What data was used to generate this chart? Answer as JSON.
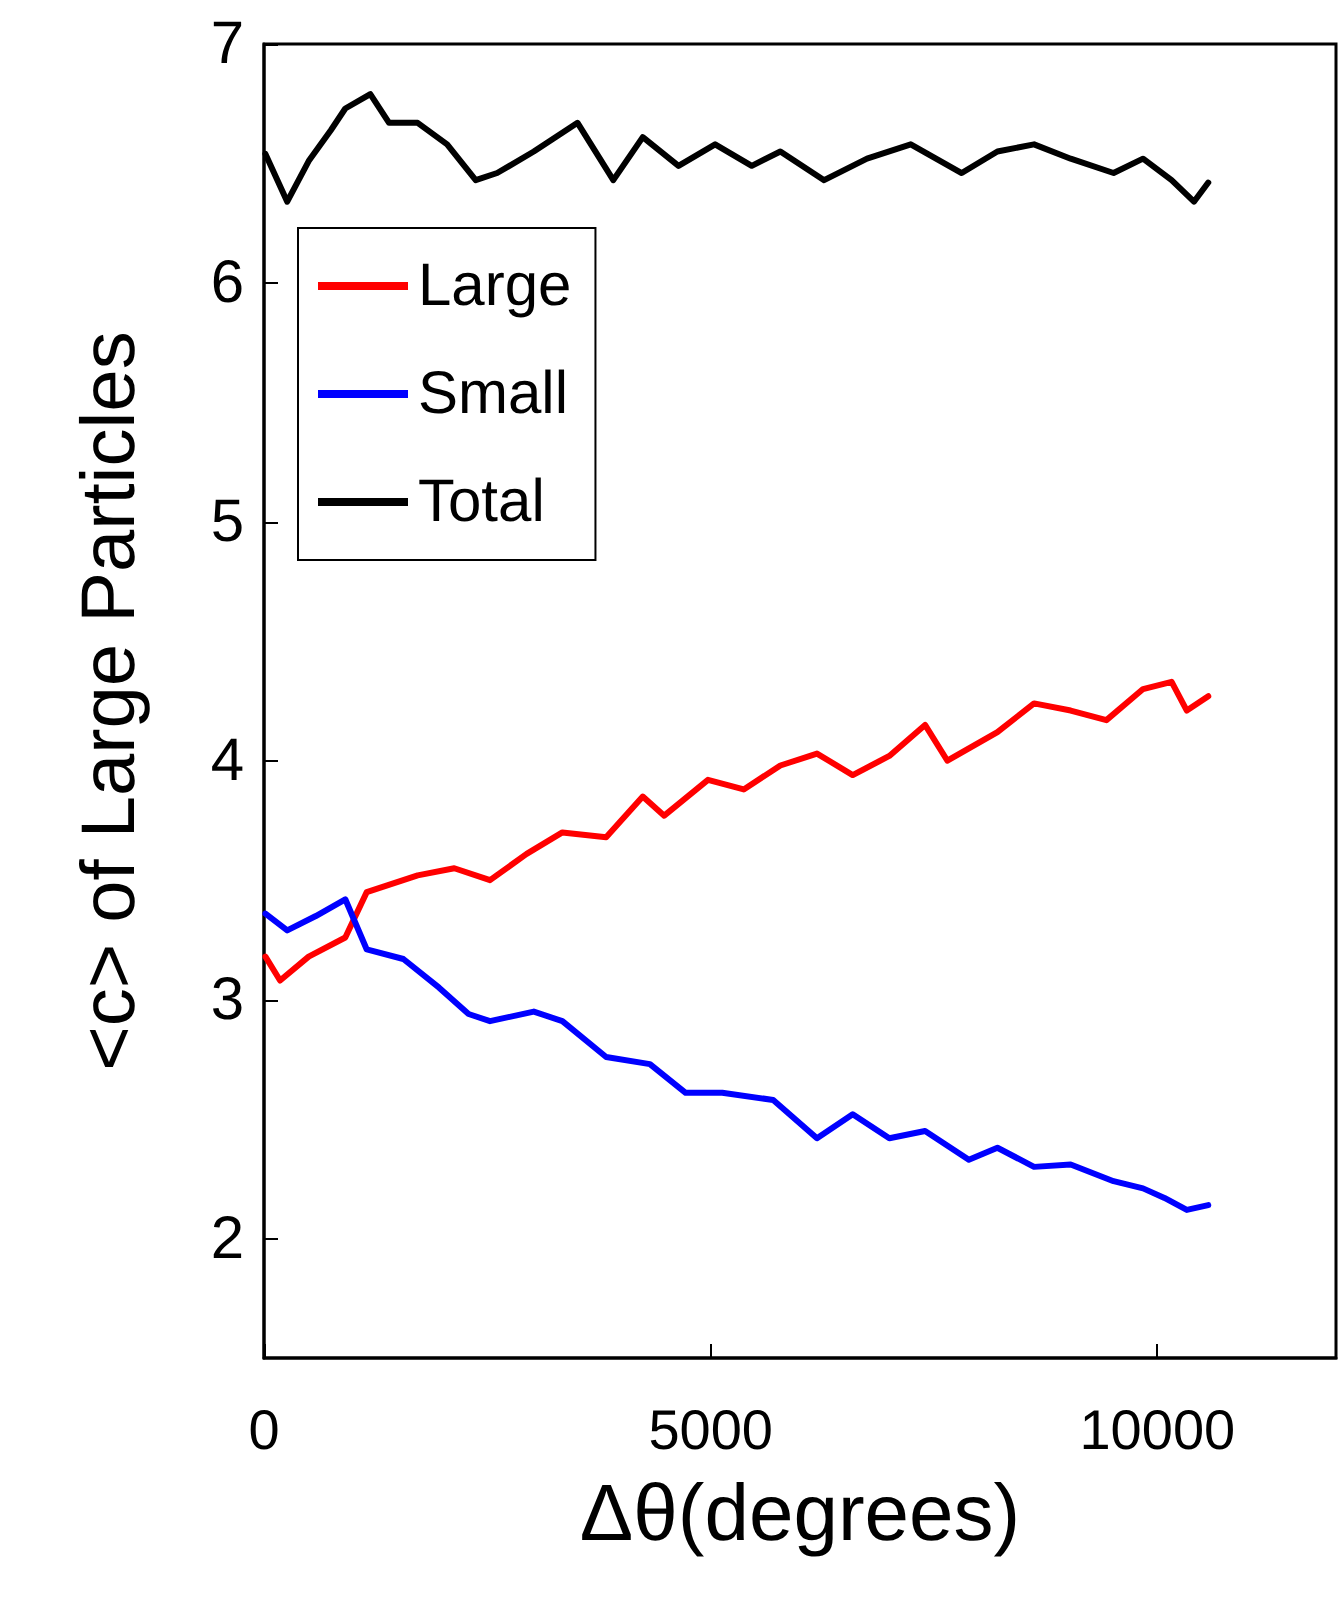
{
  "chart_data": {
    "type": "line",
    "xlabel": "Δθ(degrees)",
    "ylabel": "<c> of Large Particles",
    "xlim": [
      0,
      12000
    ],
    "xticks": [
      0,
      5000,
      10000
    ],
    "ylim": [
      1.5,
      7
    ],
    "yticks": [
      2,
      3,
      4,
      5,
      6,
      7
    ],
    "grid": false,
    "legend": "top left",
    "marker": "none",
    "line_style": "solid",
    "series": [
      {
        "name": "Large",
        "color": "#ff0000",
        "x": [
          16,
          180,
          500,
          910,
          1150,
          1720,
          2130,
          2530,
          2940,
          3340,
          3830,
          4240,
          4480,
          4970,
          5370,
          5780,
          6190,
          6590,
          7000,
          7400,
          7650,
          8210,
          8620,
          9030,
          9430,
          9840,
          10160,
          10330,
          10570
        ],
        "values": [
          3.18,
          3.08,
          3.18,
          3.26,
          3.45,
          3.52,
          3.55,
          3.5,
          3.61,
          3.7,
          3.68,
          3.85,
          3.77,
          3.92,
          3.88,
          3.98,
          4.03,
          3.94,
          4.02,
          4.15,
          4.0,
          4.12,
          4.24,
          4.21,
          4.17,
          4.3,
          4.33,
          4.21,
          4.27
        ]
      },
      {
        "name": "Small",
        "color": "#0000ff",
        "x": [
          16,
          260,
          580,
          910,
          1150,
          1560,
          1960,
          2290,
          2530,
          3020,
          3340,
          3830,
          4320,
          4720,
          5130,
          5700,
          6190,
          6590,
          7000,
          7400,
          7890,
          8210,
          8620,
          9030,
          9510,
          9840,
          10080,
          10330,
          10570
        ],
        "values": [
          3.36,
          3.29,
          3.35,
          3.42,
          3.21,
          3.17,
          3.05,
          2.94,
          2.91,
          2.95,
          2.91,
          2.76,
          2.73,
          2.61,
          2.61,
          2.58,
          2.42,
          2.52,
          2.42,
          2.45,
          2.33,
          2.38,
          2.3,
          2.31,
          2.24,
          2.21,
          2.17,
          2.12,
          2.14
        ]
      },
      {
        "name": "Total",
        "color": "#000000",
        "x": [
          16,
          260,
          500,
          750,
          910,
          1190,
          1400,
          1720,
          2050,
          2370,
          2610,
          3020,
          3510,
          3910,
          4240,
          4640,
          5050,
          5460,
          5780,
          6270,
          6750,
          7240,
          7810,
          8210,
          8620,
          9030,
          9510,
          9840,
          10160,
          10410,
          10570
        ],
        "values": [
          6.54,
          6.34,
          6.51,
          6.64,
          6.73,
          6.79,
          6.67,
          6.67,
          6.58,
          6.43,
          6.46,
          6.55,
          6.67,
          6.43,
          6.61,
          6.49,
          6.58,
          6.49,
          6.55,
          6.43,
          6.52,
          6.58,
          6.46,
          6.55,
          6.58,
          6.52,
          6.46,
          6.52,
          6.43,
          6.34,
          6.42
        ]
      }
    ]
  }
}
